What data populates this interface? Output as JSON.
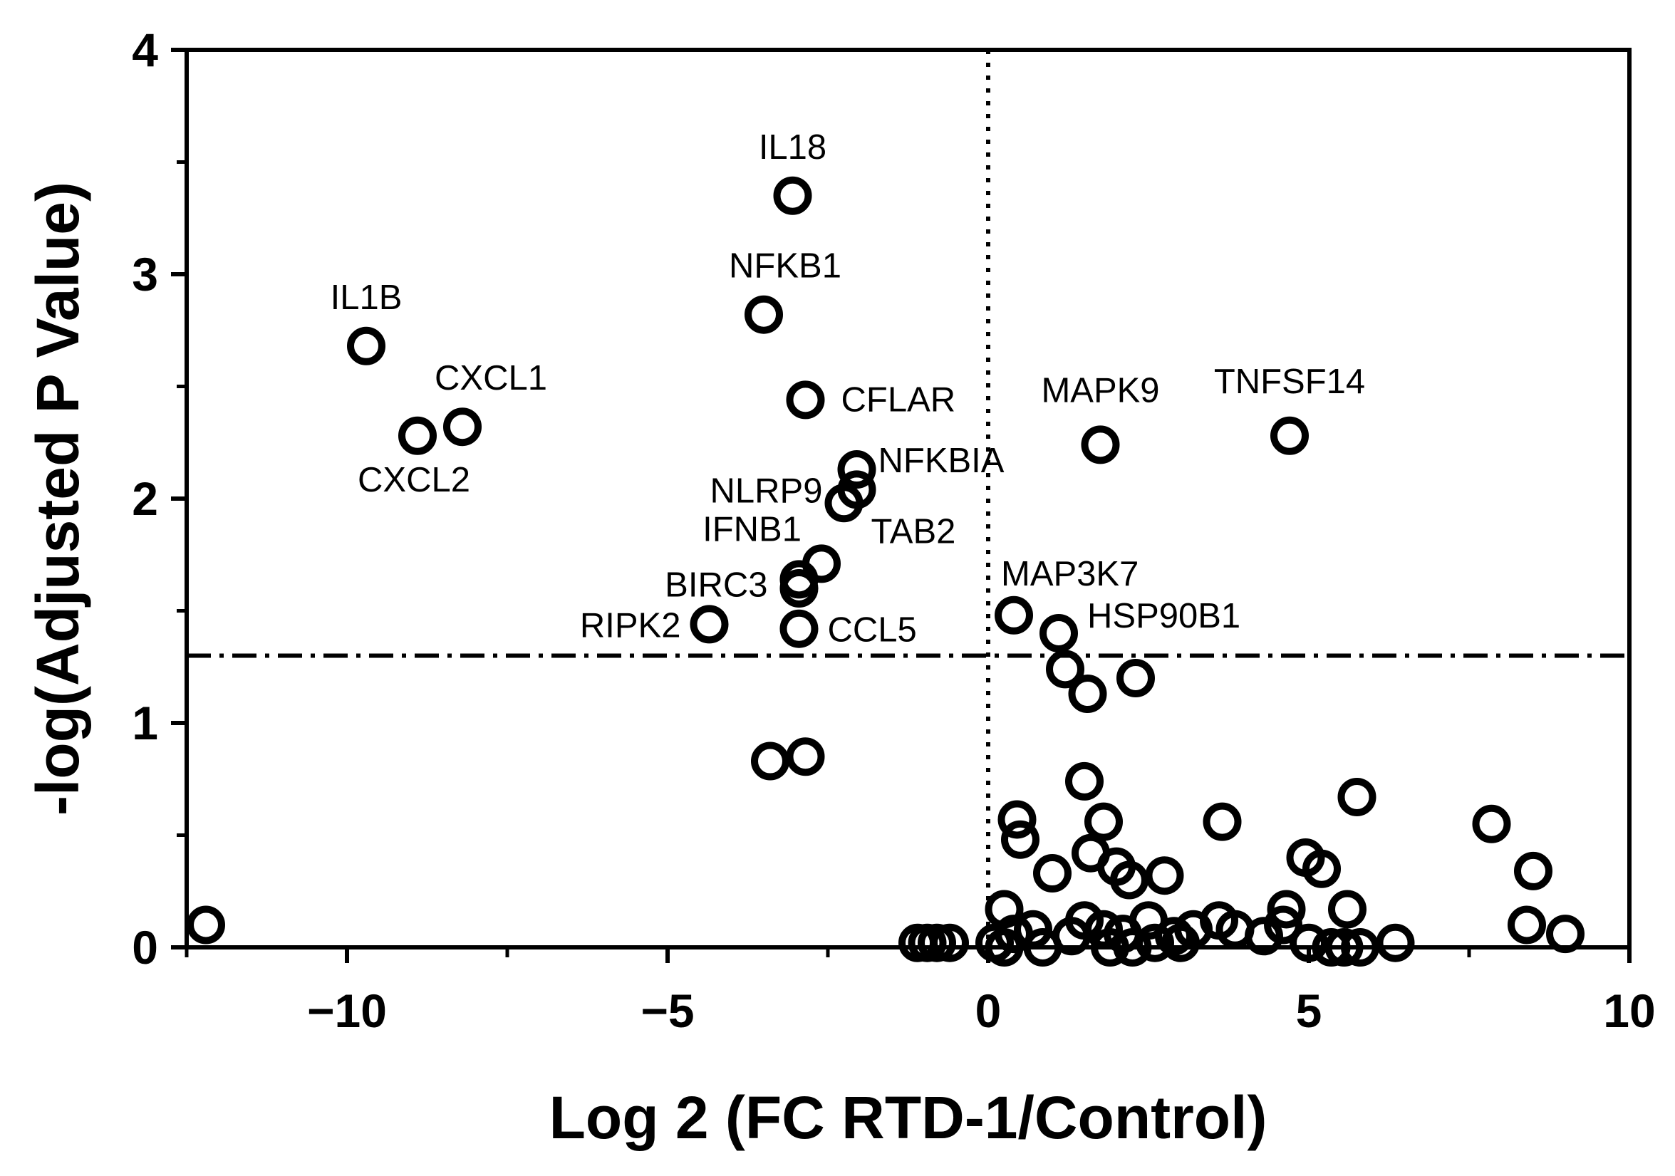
{
  "chart_data": {
    "type": "scatter",
    "title": "",
    "xlabel": "Log 2 (FC RTD-1/Control)",
    "ylabel": "-log(Adjusted P Value)",
    "xlim": [
      -12.5,
      10
    ],
    "ylim": [
      0,
      4
    ],
    "x_ticks": [
      -10,
      -5,
      0,
      5,
      10
    ],
    "x_tick_labels": [
      "−10",
      "−5",
      "0",
      "5",
      "10"
    ],
    "y_ticks": [
      0,
      1,
      2,
      3,
      4
    ],
    "y_tick_labels": [
      "0",
      "1",
      "2",
      "3",
      "4"
    ],
    "grid": false,
    "legend": "none",
    "threshold_y": 1.3,
    "threshold_x": 0,
    "points": [
      {
        "x": -3.05,
        "y": 3.35,
        "label": "IL18"
      },
      {
        "x": -3.5,
        "y": 2.82,
        "label": "NFKB1"
      },
      {
        "x": -9.7,
        "y": 2.68,
        "label": "IL1B"
      },
      {
        "x": -8.2,
        "y": 2.32,
        "label": "CXCL1"
      },
      {
        "x": -8.9,
        "y": 2.28,
        "label": "CXCL2"
      },
      {
        "x": -2.85,
        "y": 2.44,
        "label": "CFLAR"
      },
      {
        "x": -2.05,
        "y": 2.13,
        "label": "NFKBIA"
      },
      {
        "x": -2.05,
        "y": 2.04,
        "label": "NLRP9"
      },
      {
        "x": -2.25,
        "y": 1.98,
        "label": "TAB2"
      },
      {
        "x": -2.6,
        "y": 1.71,
        "label": "IFNB1"
      },
      {
        "x": -2.95,
        "y": 1.64,
        "label": "BIRC3"
      },
      {
        "x": -4.35,
        "y": 1.44,
        "label": "RIPK2"
      },
      {
        "x": -2.95,
        "y": 1.42,
        "label": "CCL5"
      },
      {
        "x": 1.75,
        "y": 2.24,
        "label": "MAPK9"
      },
      {
        "x": 4.7,
        "y": 2.28,
        "label": "TNFSF14"
      },
      {
        "x": 0.4,
        "y": 1.48,
        "label": "MAP3K7"
      },
      {
        "x": 1.1,
        "y": 1.4,
        "label": "HSP90B1"
      },
      {
        "x": -2.95,
        "y": 1.6
      },
      {
        "x": 1.2,
        "y": 1.24
      },
      {
        "x": 1.55,
        "y": 1.13
      },
      {
        "x": 2.3,
        "y": 1.2
      },
      {
        "x": -3.4,
        "y": 0.83
      },
      {
        "x": -2.85,
        "y": 0.85
      },
      {
        "x": -12.2,
        "y": 0.1
      },
      {
        "x": 1.5,
        "y": 0.74
      },
      {
        "x": 0.45,
        "y": 0.57
      },
      {
        "x": 0.5,
        "y": 0.48
      },
      {
        "x": 1.8,
        "y": 0.56
      },
      {
        "x": 1.6,
        "y": 0.42
      },
      {
        "x": 3.65,
        "y": 0.56
      },
      {
        "x": 5.75,
        "y": 0.67
      },
      {
        "x": 7.85,
        "y": 0.55
      },
      {
        "x": 8.5,
        "y": 0.34
      },
      {
        "x": 1.0,
        "y": 0.33
      },
      {
        "x": 2.0,
        "y": 0.36
      },
      {
        "x": 2.2,
        "y": 0.3
      },
      {
        "x": 2.75,
        "y": 0.32
      },
      {
        "x": 4.95,
        "y": 0.4
      },
      {
        "x": 5.2,
        "y": 0.35
      },
      {
        "x": 5.6,
        "y": 0.17
      },
      {
        "x": 0.25,
        "y": 0.17
      },
      {
        "x": 4.65,
        "y": 0.17
      },
      {
        "x": 4.6,
        "y": 0.1
      },
      {
        "x": 1.5,
        "y": 0.12
      },
      {
        "x": 2.5,
        "y": 0.12
      },
      {
        "x": 3.6,
        "y": 0.12
      },
      {
        "x": 0.4,
        "y": 0.06
      },
      {
        "x": 0.7,
        "y": 0.08
      },
      {
        "x": 1.3,
        "y": 0.05
      },
      {
        "x": 1.8,
        "y": 0.08
      },
      {
        "x": 2.1,
        "y": 0.06
      },
      {
        "x": 2.9,
        "y": 0.05
      },
      {
        "x": 3.2,
        "y": 0.08
      },
      {
        "x": 3.85,
        "y": 0.08
      },
      {
        "x": 4.3,
        "y": 0.05
      },
      {
        "x": 8.4,
        "y": 0.1
      },
      {
        "x": 9.0,
        "y": 0.06
      },
      {
        "x": -1.1,
        "y": 0.02
      },
      {
        "x": -0.95,
        "y": 0.02
      },
      {
        "x": -0.8,
        "y": 0.02
      },
      {
        "x": -0.6,
        "y": 0.02
      },
      {
        "x": 0.1,
        "y": 0.02
      },
      {
        "x": 0.25,
        "y": 0.0
      },
      {
        "x": 0.85,
        "y": 0.0
      },
      {
        "x": 1.9,
        "y": 0.0
      },
      {
        "x": 2.25,
        "y": 0.0
      },
      {
        "x": 2.6,
        "y": 0.02
      },
      {
        "x": 3.0,
        "y": 0.02
      },
      {
        "x": 5.0,
        "y": 0.02
      },
      {
        "x": 5.35,
        "y": 0.0
      },
      {
        "x": 5.55,
        "y": 0.0
      },
      {
        "x": 5.8,
        "y": 0.0
      },
      {
        "x": 6.35,
        "y": 0.02
      }
    ]
  }
}
